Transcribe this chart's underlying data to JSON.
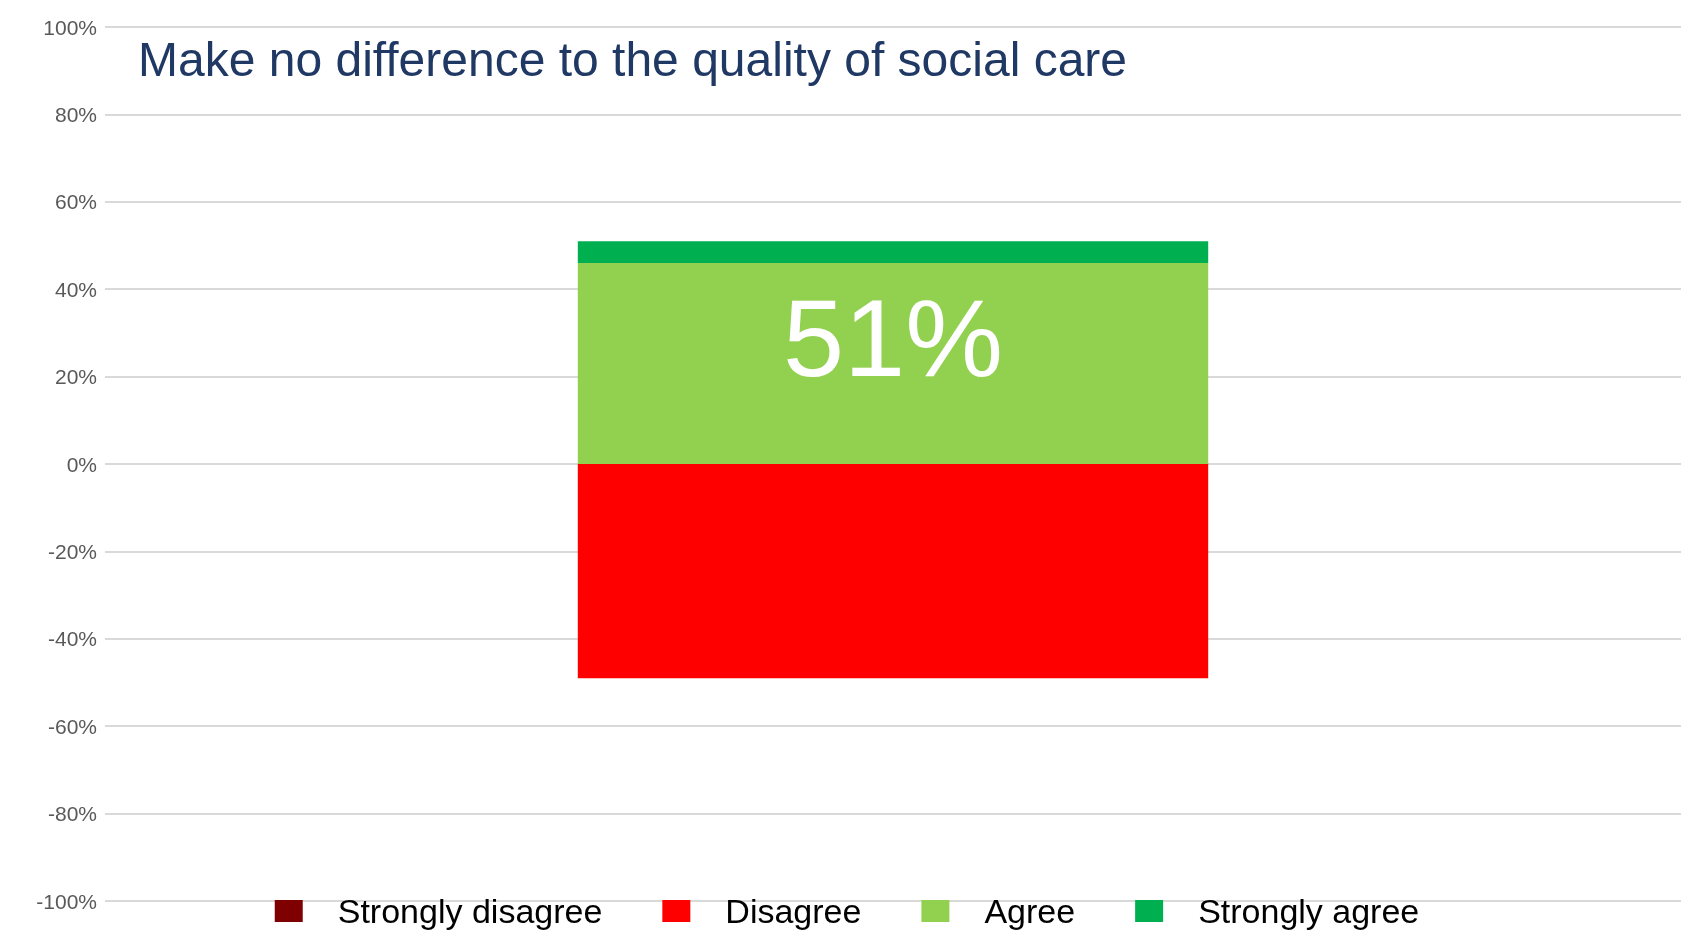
{
  "chart_data": {
    "type": "bar",
    "title": "Make no difference to the quality of social care",
    "categories": [
      null
    ],
    "stacked": true,
    "series": [
      {
        "name": "Strongly disagree",
        "color": "#7f0000",
        "values": [
          0
        ]
      },
      {
        "name": "Disagree",
        "color": "#ff0000",
        "values": [
          -49
        ]
      },
      {
        "name": "Agree",
        "color": "#92d050",
        "values": [
          46
        ]
      },
      {
        "name": "Strongly agree",
        "color": "#00b050",
        "values": [
          5
        ]
      }
    ],
    "annotations": [
      "51%"
    ],
    "ylim": [
      -100,
      100
    ],
    "yticks": [
      {
        "value": -100,
        "label": "-100%"
      },
      {
        "value": -80,
        "label": "-80%"
      },
      {
        "value": -60,
        "label": "-60%"
      },
      {
        "value": -40,
        "label": "-40%"
      },
      {
        "value": -20,
        "label": "-20%"
      },
      {
        "value": 0,
        "label": "0%"
      },
      {
        "value": 20,
        "label": "20%"
      },
      {
        "value": 40,
        "label": "40%"
      },
      {
        "value": 60,
        "label": "60%"
      },
      {
        "value": 80,
        "label": "80%"
      },
      {
        "value": 100,
        "label": "100%"
      }
    ],
    "grid": true,
    "legend": "bottom"
  }
}
